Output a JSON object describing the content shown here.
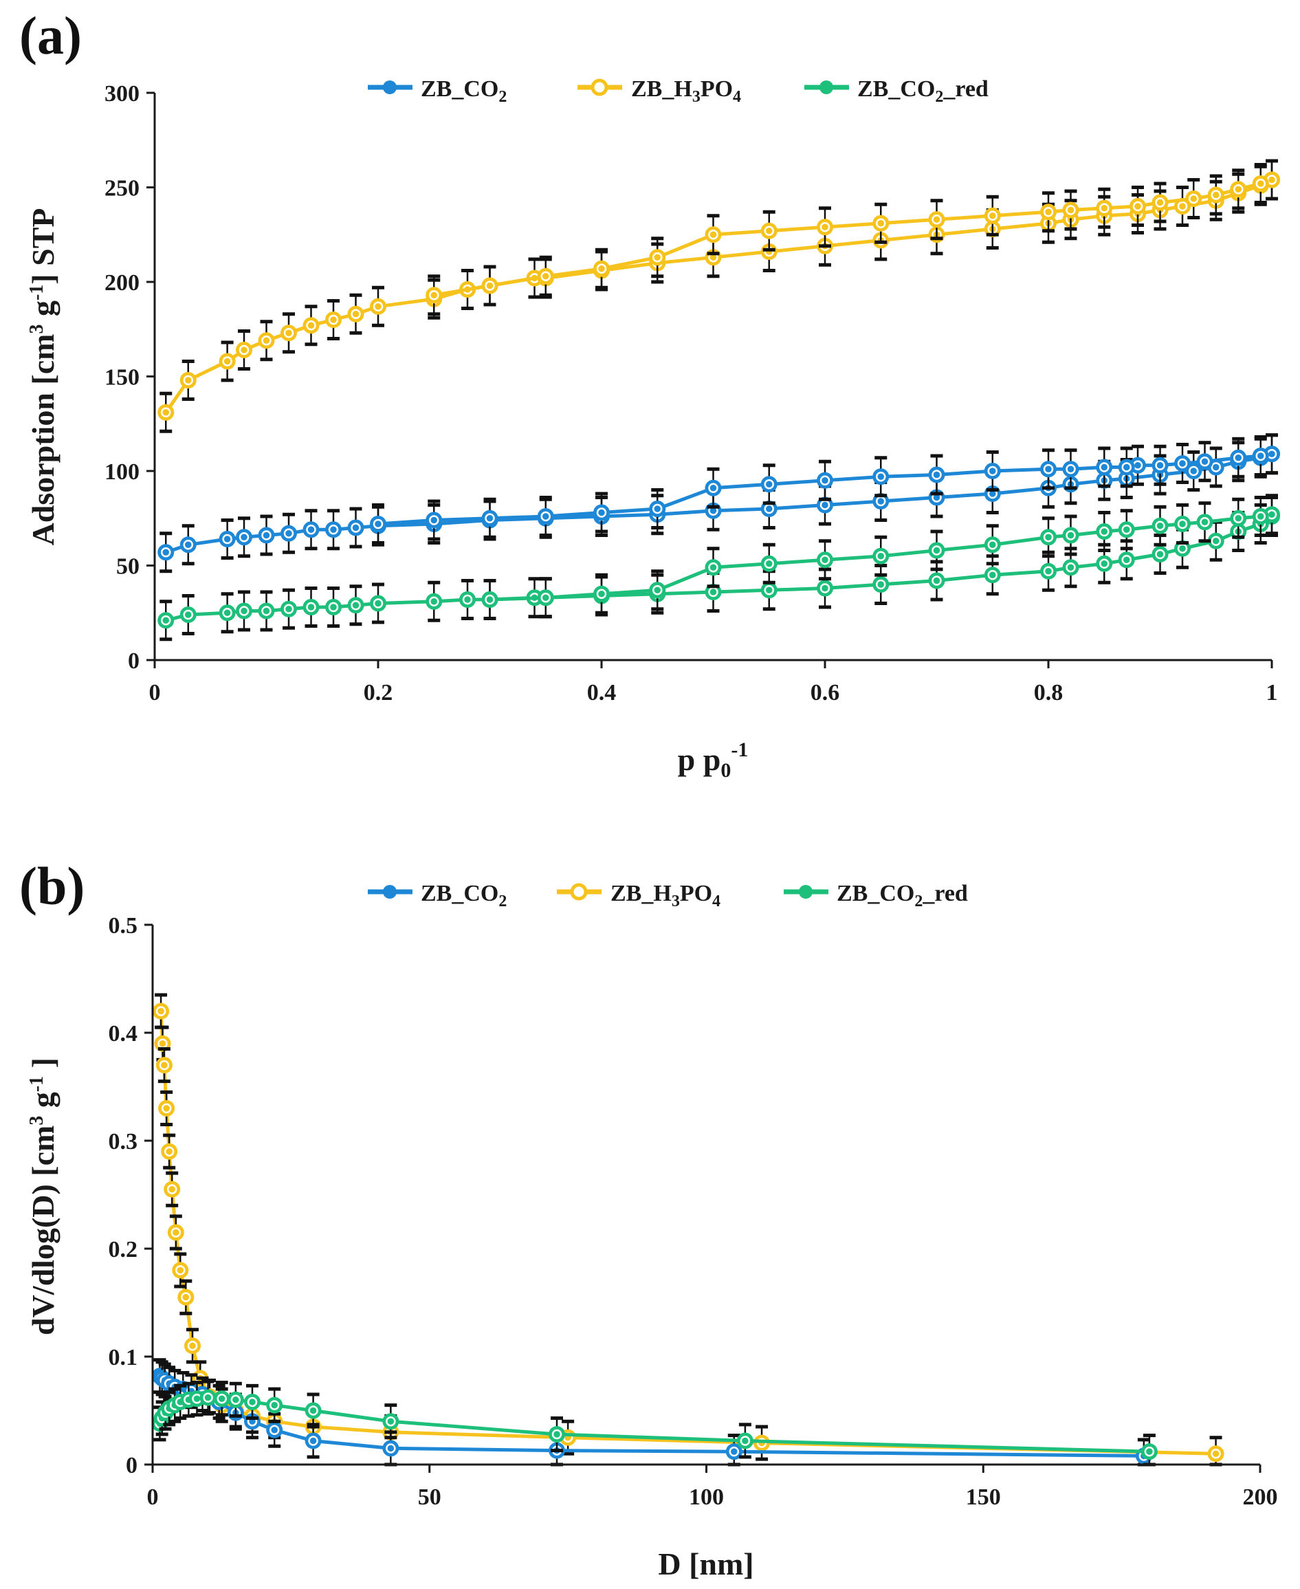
{
  "colors": {
    "ZB_CO2": "#1e88d6",
    "ZB_H3PO4": "#f6c21e",
    "ZB_CO2_red": "#1dbf7a",
    "axis": "#1a1a1a",
    "errorbar": "#111111"
  },
  "legend_labels": {
    "ZB_CO2": {
      "base": "ZB_CO",
      "sub": "2",
      "tail": ""
    },
    "ZB_H3PO4": {
      "base": "ZB_H",
      "sub": "3",
      "mid": "PO",
      "sub2": "4"
    },
    "ZB_CO2_red": {
      "base": "ZB_CO",
      "sub": "2",
      "tail": "_red"
    }
  },
  "chart_data": [
    {
      "panel": "(a)",
      "type": "line",
      "xlabel": {
        "main": "p p",
        "sub": "0",
        "sup": "-1"
      },
      "ylabel": {
        "pre": "Adsorption [cm",
        "sup1": "3",
        "mid": " g",
        "sup2": "-1",
        "post": "] STP"
      },
      "xlim": [
        0,
        1
      ],
      "ylim": [
        0,
        300
      ],
      "xticks": [
        0,
        0.2,
        0.4,
        0.6,
        0.8,
        1
      ],
      "xtick_labels": [
        "0",
        "0.2",
        "0.4",
        "0.6",
        "0.8",
        "1"
      ],
      "yticks": [
        0,
        50,
        100,
        150,
        200,
        250,
        300
      ],
      "ytick_labels": [
        "0",
        "50",
        "100",
        "150",
        "200",
        "250",
        "300"
      ],
      "error_bar": 10,
      "marker": "ring",
      "legend_position": "top-center",
      "series": [
        {
          "key": "ZB_H3PO4",
          "adsorption": {
            "x": [
              0.01,
              0.03,
              0.065,
              0.08,
              0.1,
              0.12,
              0.14,
              0.16,
              0.18,
              0.2,
              0.25,
              0.28,
              0.3,
              0.34,
              0.35,
              0.4,
              0.45,
              0.5,
              0.55,
              0.6,
              0.65,
              0.7,
              0.75,
              0.8,
              0.82,
              0.85,
              0.88,
              0.9,
              0.92,
              0.95,
              0.97,
              0.99,
              1.0
            ],
            "y": [
              131,
              148,
              158,
              164,
              169,
              173,
              177,
              180,
              183,
              187,
              191,
              196,
              198,
              202,
              202,
              206,
              210,
              213,
              216,
              219,
              222,
              225,
              228,
              231,
              233,
              235,
              236,
              238,
              240,
              243,
              247,
              251,
              254
            ]
          },
          "desorption": {
            "x": [
              1.0,
              0.99,
              0.97,
              0.95,
              0.93,
              0.9,
              0.88,
              0.85,
              0.82,
              0.8,
              0.75,
              0.7,
              0.65,
              0.6,
              0.55,
              0.5,
              0.45,
              0.4,
              0.35,
              0.3,
              0.25
            ],
            "y": [
              254,
              252,
              249,
              246,
              244,
              242,
              240,
              239,
              238,
              237,
              235,
              233,
              231,
              229,
              227,
              225,
              213,
              207,
              203,
              198,
              193
            ]
          }
        },
        {
          "key": "ZB_CO2",
          "adsorption": {
            "x": [
              0.01,
              0.03,
              0.065,
              0.08,
              0.1,
              0.12,
              0.14,
              0.16,
              0.18,
              0.2,
              0.25,
              0.3,
              0.35,
              0.4,
              0.45,
              0.5,
              0.55,
              0.6,
              0.65,
              0.7,
              0.75,
              0.8,
              0.82,
              0.85,
              0.87,
              0.9,
              0.93,
              0.95,
              0.97,
              0.99,
              1.0
            ],
            "y": [
              57,
              61,
              64,
              65,
              66,
              67,
              69,
              69,
              70,
              71,
              72,
              74,
              75,
              76,
              77,
              79,
              80,
              82,
              84,
              86,
              88,
              91,
              93,
              95,
              96,
              98,
              100,
              102,
              105,
              107,
              109
            ]
          },
          "desorption": {
            "x": [
              1.0,
              0.99,
              0.97,
              0.94,
              0.92,
              0.9,
              0.88,
              0.87,
              0.85,
              0.82,
              0.8,
              0.75,
              0.7,
              0.65,
              0.6,
              0.55,
              0.5,
              0.45,
              0.4,
              0.35,
              0.3,
              0.25,
              0.2
            ],
            "y": [
              109,
              108,
              107,
              105,
              104,
              103,
              103,
              102,
              102,
              101,
              101,
              100,
              98,
              97,
              95,
              93,
              91,
              80,
              78,
              76,
              75,
              74,
              72
            ]
          }
        },
        {
          "key": "ZB_CO2_red",
          "adsorption": {
            "x": [
              0.01,
              0.03,
              0.065,
              0.08,
              0.1,
              0.12,
              0.14,
              0.16,
              0.18,
              0.2,
              0.25,
              0.28,
              0.3,
              0.34,
              0.35,
              0.4,
              0.45,
              0.5,
              0.55,
              0.6,
              0.65,
              0.7,
              0.75,
              0.8,
              0.82,
              0.85,
              0.87,
              0.9,
              0.92,
              0.95,
              0.97,
              0.99,
              1.0
            ],
            "y": [
              21,
              24,
              25,
              26,
              26,
              27,
              28,
              28,
              29,
              30,
              31,
              32,
              32,
              33,
              33,
              34,
              35,
              36,
              37,
              38,
              40,
              42,
              45,
              47,
              49,
              51,
              53,
              56,
              59,
              63,
              68,
              72,
              76
            ]
          },
          "desorption": {
            "x": [
              1.0,
              0.99,
              0.97,
              0.94,
              0.92,
              0.9,
              0.87,
              0.85,
              0.82,
              0.8,
              0.75,
              0.7,
              0.65,
              0.6,
              0.55,
              0.5,
              0.45,
              0.4,
              0.35,
              0.3
            ],
            "y": [
              77,
              76,
              75,
              73,
              72,
              71,
              69,
              68,
              66,
              65,
              61,
              58,
              55,
              53,
              51,
              49,
              37,
              35,
              33,
              32
            ]
          }
        }
      ]
    },
    {
      "panel": "(b)",
      "type": "line",
      "xlabel": {
        "main": "D [nm]"
      },
      "ylabel": {
        "pre": "dV/dlog(D)  [cm",
        "sup1": "3",
        "mid": " g",
        "sup2": "-1",
        "post": " ]"
      },
      "xlim": [
        0,
        200
      ],
      "ylim": [
        0,
        0.5
      ],
      "xticks": [
        0,
        50,
        100,
        150,
        200
      ],
      "xtick_labels": [
        "0",
        "50",
        "100",
        "150",
        "200"
      ],
      "yticks": [
        0,
        0.1,
        0.2,
        0.3,
        0.4,
        0.5
      ],
      "ytick_labels": [
        "0",
        "0.1",
        "0.2",
        "0.3",
        "0.4",
        "0.5"
      ],
      "error_bar": 0.015,
      "marker": "ring",
      "legend_position": "top-center",
      "series": [
        {
          "key": "ZB_H3PO4",
          "x": [
            1.5,
            1.8,
            2.1,
            2.5,
            3.0,
            3.5,
            4.2,
            5.0,
            6.0,
            7.2,
            8.6,
            10.3,
            12.5,
            15.0,
            18.0,
            22.0,
            29.0,
            43.0,
            75.0,
            110.0,
            192.0
          ],
          "y": [
            0.42,
            0.39,
            0.37,
            0.33,
            0.29,
            0.255,
            0.215,
            0.18,
            0.155,
            0.11,
            0.08,
            0.063,
            0.055,
            0.05,
            0.045,
            0.04,
            0.035,
            0.03,
            0.025,
            0.02,
            0.01
          ]
        },
        {
          "key": "ZB_CO2",
          "x": [
            1.3,
            1.7,
            2.2,
            3.0,
            4.0,
            5.5,
            7.0,
            9.0,
            12.0,
            15.0,
            18.0,
            22.0,
            29.0,
            43.0,
            73.0,
            105.0,
            179.0
          ],
          "y": [
            0.082,
            0.08,
            0.078,
            0.075,
            0.072,
            0.07,
            0.068,
            0.065,
            0.058,
            0.048,
            0.04,
            0.032,
            0.022,
            0.015,
            0.013,
            0.012,
            0.008
          ]
        },
        {
          "key": "ZB_CO2_red",
          "x": [
            1.3,
            1.7,
            2.3,
            3.0,
            4.0,
            5.0,
            6.5,
            8.0,
            10.0,
            12.5,
            15.0,
            18.0,
            22.0,
            29.0,
            43.0,
            73.0,
            107.0,
            180.0
          ],
          "y": [
            0.038,
            0.043,
            0.048,
            0.052,
            0.055,
            0.058,
            0.06,
            0.061,
            0.062,
            0.061,
            0.06,
            0.058,
            0.055,
            0.05,
            0.04,
            0.028,
            0.022,
            0.012
          ]
        }
      ]
    }
  ]
}
